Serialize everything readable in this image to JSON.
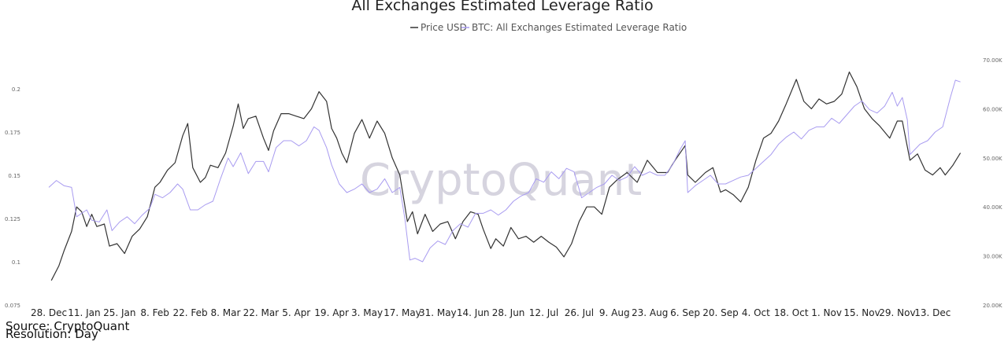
{
  "chart_data": {
    "type": "line",
    "title": "All Exchanges Estimated Leverage Ratio",
    "legend": "top-center",
    "grid": false,
    "watermark": "CryptoQuant",
    "x_ticks": [
      "28. Dec",
      "11. Jan",
      "25. Jan",
      "8. Feb",
      "22. Feb",
      "8. Mar",
      "22. Mar",
      "5. Apr",
      "19. Apr",
      "3. May",
      "17. May",
      "31. May",
      "14. Jun",
      "28. Jun",
      "12. Jul",
      "26. Jul",
      "9. Aug",
      "23. Aug",
      "6. Sep",
      "20. Sep",
      "4. Oct",
      "18. Oct",
      "1. Nov",
      "15. Nov",
      "29. Nov",
      "13. Dec"
    ],
    "x_range": [
      "2020-12-28",
      "2021-12-26"
    ],
    "y_left": {
      "ticks": [
        "0.075",
        "0.1",
        "0.125",
        "0.15",
        "0.175",
        "0.2"
      ],
      "range": [
        0.075,
        0.2
      ]
    },
    "y_right": {
      "ticks": [
        "20.00K",
        "30.00K",
        "40.00K",
        "50.00K",
        "60.00K",
        "70.00K"
      ],
      "range": [
        20000,
        70000
      ]
    },
    "series": [
      {
        "name": "Price USD",
        "axis": "right",
        "color": "#333333",
        "points": [
          [
            "2020-12-29",
            25000
          ],
          [
            "2021-01-01",
            28000
          ],
          [
            "2021-01-03",
            31000
          ],
          [
            "2021-01-06",
            35000
          ],
          [
            "2021-01-08",
            40000
          ],
          [
            "2021-01-10",
            39000
          ],
          [
            "2021-01-12",
            36000
          ],
          [
            "2021-01-14",
            38500
          ],
          [
            "2021-01-16",
            36000
          ],
          [
            "2021-01-19",
            36500
          ],
          [
            "2021-01-21",
            32000
          ],
          [
            "2021-01-24",
            32500
          ],
          [
            "2021-01-27",
            30500
          ],
          [
            "2021-01-30",
            34000
          ],
          [
            "2021-02-02",
            35500
          ],
          [
            "2021-02-05",
            38000
          ],
          [
            "2021-02-08",
            44000
          ],
          [
            "2021-02-10",
            45000
          ],
          [
            "2021-02-13",
            47500
          ],
          [
            "2021-02-16",
            49000
          ],
          [
            "2021-02-19",
            54500
          ],
          [
            "2021-02-21",
            57000
          ],
          [
            "2021-02-23",
            48000
          ],
          [
            "2021-02-26",
            45000
          ],
          [
            "2021-02-28",
            46000
          ],
          [
            "2021-03-02",
            48500
          ],
          [
            "2021-03-05",
            48000
          ],
          [
            "2021-03-08",
            51000
          ],
          [
            "2021-03-11",
            56500
          ],
          [
            "2021-03-13",
            61000
          ],
          [
            "2021-03-15",
            56000
          ],
          [
            "2021-03-17",
            58000
          ],
          [
            "2021-03-20",
            58500
          ],
          [
            "2021-03-23",
            54000
          ],
          [
            "2021-03-25",
            51500
          ],
          [
            "2021-03-27",
            55500
          ],
          [
            "2021-03-30",
            59000
          ],
          [
            "2021-04-02",
            59000
          ],
          [
            "2021-04-05",
            58500
          ],
          [
            "2021-04-08",
            58000
          ],
          [
            "2021-04-11",
            60000
          ],
          [
            "2021-04-14",
            63500
          ],
          [
            "2021-04-17",
            61500
          ],
          [
            "2021-04-19",
            56000
          ],
          [
            "2021-04-21",
            54000
          ],
          [
            "2021-04-23",
            51000
          ],
          [
            "2021-04-25",
            49000
          ],
          [
            "2021-04-28",
            55000
          ],
          [
            "2021-05-01",
            57800
          ],
          [
            "2021-05-04",
            54000
          ],
          [
            "2021-05-07",
            57500
          ],
          [
            "2021-05-10",
            55000
          ],
          [
            "2021-05-13",
            50000
          ],
          [
            "2021-05-16",
            46500
          ],
          [
            "2021-05-19",
            37000
          ],
          [
            "2021-05-21",
            39000
          ],
          [
            "2021-05-23",
            34500
          ],
          [
            "2021-05-26",
            38500
          ],
          [
            "2021-05-29",
            35000
          ],
          [
            "2021-06-01",
            36500
          ],
          [
            "2021-06-04",
            37000
          ],
          [
            "2021-06-07",
            33500
          ],
          [
            "2021-06-10",
            37000
          ],
          [
            "2021-06-13",
            39000
          ],
          [
            "2021-06-16",
            38500
          ],
          [
            "2021-06-18",
            35500
          ],
          [
            "2021-06-21",
            31500
          ],
          [
            "2021-06-23",
            33500
          ],
          [
            "2021-06-26",
            32000
          ],
          [
            "2021-06-29",
            35800
          ],
          [
            "2021-07-02",
            33500
          ],
          [
            "2021-07-05",
            34000
          ],
          [
            "2021-07-08",
            32800
          ],
          [
            "2021-07-11",
            34000
          ],
          [
            "2021-07-14",
            32800
          ],
          [
            "2021-07-17",
            31800
          ],
          [
            "2021-07-20",
            29800
          ],
          [
            "2021-07-23",
            32500
          ],
          [
            "2021-07-26",
            37000
          ],
          [
            "2021-07-29",
            40000
          ],
          [
            "2021-08-01",
            40000
          ],
          [
            "2021-08-04",
            38500
          ],
          [
            "2021-08-07",
            44000
          ],
          [
            "2021-08-10",
            45500
          ],
          [
            "2021-08-14",
            47000
          ],
          [
            "2021-08-18",
            45000
          ],
          [
            "2021-08-22",
            49500
          ],
          [
            "2021-08-26",
            47000
          ],
          [
            "2021-08-30",
            47000
          ],
          [
            "2021-09-02",
            49500
          ],
          [
            "2021-09-06",
            52500
          ],
          [
            "2021-09-07",
            46500
          ],
          [
            "2021-09-10",
            45000
          ],
          [
            "2021-09-14",
            47000
          ],
          [
            "2021-09-17",
            48000
          ],
          [
            "2021-09-20",
            43000
          ],
          [
            "2021-09-22",
            43500
          ],
          [
            "2021-09-25",
            42500
          ],
          [
            "2021-09-28",
            41000
          ],
          [
            "2021-10-01",
            44000
          ],
          [
            "2021-10-04",
            49500
          ],
          [
            "2021-10-07",
            54000
          ],
          [
            "2021-10-10",
            55000
          ],
          [
            "2021-10-13",
            57500
          ],
          [
            "2021-10-16",
            61000
          ],
          [
            "2021-10-20",
            66000
          ],
          [
            "2021-10-23",
            61500
          ],
          [
            "2021-10-26",
            60000
          ],
          [
            "2021-10-29",
            62000
          ],
          [
            "2021-11-01",
            61000
          ],
          [
            "2021-11-04",
            61500
          ],
          [
            "2021-11-07",
            63000
          ],
          [
            "2021-11-10",
            67500
          ],
          [
            "2021-11-13",
            64500
          ],
          [
            "2021-11-16",
            60000
          ],
          [
            "2021-11-19",
            58000
          ],
          [
            "2021-11-22",
            56500
          ],
          [
            "2021-11-26",
            54000
          ],
          [
            "2021-11-29",
            57500
          ],
          [
            "2021-12-01",
            57500
          ],
          [
            "2021-12-04",
            49500
          ],
          [
            "2021-12-07",
            50800
          ],
          [
            "2021-12-10",
            47500
          ],
          [
            "2021-12-13",
            46500
          ],
          [
            "2021-12-16",
            48000
          ],
          [
            "2021-12-18",
            46500
          ],
          [
            "2021-12-21",
            48500
          ],
          [
            "2021-12-24",
            51000
          ]
        ]
      },
      {
        "name": "BTC: All Exchanges Estimated Leverage Ratio",
        "axis": "left",
        "color": "#a89bf0",
        "points": [
          [
            "2020-12-28",
            0.143
          ],
          [
            "2020-12-31",
            0.147
          ],
          [
            "2021-01-03",
            0.144
          ],
          [
            "2021-01-06",
            0.143
          ],
          [
            "2021-01-08",
            0.126
          ],
          [
            "2021-01-10",
            0.128
          ],
          [
            "2021-01-12",
            0.13
          ],
          [
            "2021-01-14",
            0.124
          ],
          [
            "2021-01-17",
            0.123
          ],
          [
            "2021-01-20",
            0.13
          ],
          [
            "2021-01-22",
            0.118
          ],
          [
            "2021-01-25",
            0.123
          ],
          [
            "2021-01-28",
            0.126
          ],
          [
            "2021-01-31",
            0.122
          ],
          [
            "2021-02-03",
            0.127
          ],
          [
            "2021-02-06",
            0.131
          ],
          [
            "2021-02-08",
            0.139
          ],
          [
            "2021-02-11",
            0.137
          ],
          [
            "2021-02-14",
            0.14
          ],
          [
            "2021-02-17",
            0.145
          ],
          [
            "2021-02-19",
            0.142
          ],
          [
            "2021-02-22",
            0.13
          ],
          [
            "2021-02-25",
            0.13
          ],
          [
            "2021-02-28",
            0.133
          ],
          [
            "2021-03-03",
            0.135
          ],
          [
            "2021-03-06",
            0.148
          ],
          [
            "2021-03-09",
            0.16
          ],
          [
            "2021-03-11",
            0.155
          ],
          [
            "2021-03-14",
            0.163
          ],
          [
            "2021-03-17",
            0.151
          ],
          [
            "2021-03-20",
            0.158
          ],
          [
            "2021-03-23",
            0.158
          ],
          [
            "2021-03-25",
            0.152
          ],
          [
            "2021-03-28",
            0.166
          ],
          [
            "2021-03-31",
            0.17
          ],
          [
            "2021-04-03",
            0.17
          ],
          [
            "2021-04-06",
            0.167
          ],
          [
            "2021-04-09",
            0.17
          ],
          [
            "2021-04-12",
            0.178
          ],
          [
            "2021-04-14",
            0.176
          ],
          [
            "2021-04-17",
            0.166
          ],
          [
            "2021-04-19",
            0.156
          ],
          [
            "2021-04-22",
            0.145
          ],
          [
            "2021-04-25",
            0.14
          ],
          [
            "2021-04-28",
            0.142
          ],
          [
            "2021-05-01",
            0.145
          ],
          [
            "2021-05-04",
            0.14
          ],
          [
            "2021-05-07",
            0.142
          ],
          [
            "2021-05-10",
            0.148
          ],
          [
            "2021-05-13",
            0.14
          ],
          [
            "2021-05-16",
            0.143
          ],
          [
            "2021-05-18",
            0.125
          ],
          [
            "2021-05-20",
            0.101
          ],
          [
            "2021-05-22",
            0.102
          ],
          [
            "2021-05-25",
            0.1
          ],
          [
            "2021-05-28",
            0.108
          ],
          [
            "2021-05-31",
            0.112
          ],
          [
            "2021-06-03",
            0.11
          ],
          [
            "2021-06-06",
            0.118
          ],
          [
            "2021-06-09",
            0.122
          ],
          [
            "2021-06-12",
            0.12
          ],
          [
            "2021-06-15",
            0.128
          ],
          [
            "2021-06-18",
            0.128
          ],
          [
            "2021-06-21",
            0.13
          ],
          [
            "2021-06-24",
            0.127
          ],
          [
            "2021-06-27",
            0.13
          ],
          [
            "2021-06-30",
            0.135
          ],
          [
            "2021-07-03",
            0.138
          ],
          [
            "2021-07-06",
            0.14
          ],
          [
            "2021-07-09",
            0.148
          ],
          [
            "2021-07-12",
            0.146
          ],
          [
            "2021-07-15",
            0.152
          ],
          [
            "2021-07-18",
            0.148
          ],
          [
            "2021-07-21",
            0.154
          ],
          [
            "2021-07-24",
            0.152
          ],
          [
            "2021-07-27",
            0.137
          ],
          [
            "2021-07-30",
            0.14
          ],
          [
            "2021-08-02",
            0.143
          ],
          [
            "2021-08-05",
            0.145
          ],
          [
            "2021-08-08",
            0.15
          ],
          [
            "2021-08-11",
            0.147
          ],
          [
            "2021-08-14",
            0.149
          ],
          [
            "2021-08-17",
            0.155
          ],
          [
            "2021-08-20",
            0.15
          ],
          [
            "2021-08-23",
            0.152
          ],
          [
            "2021-08-26",
            0.15
          ],
          [
            "2021-08-29",
            0.15
          ],
          [
            "2021-09-01",
            0.156
          ],
          [
            "2021-09-04",
            0.165
          ],
          [
            "2021-09-06",
            0.17
          ],
          [
            "2021-09-07",
            0.14
          ],
          [
            "2021-09-10",
            0.144
          ],
          [
            "2021-09-13",
            0.147
          ],
          [
            "2021-09-16",
            0.15
          ],
          [
            "2021-09-19",
            0.145
          ],
          [
            "2021-09-22",
            0.145
          ],
          [
            "2021-09-25",
            0.147
          ],
          [
            "2021-09-28",
            0.149
          ],
          [
            "2021-10-01",
            0.15
          ],
          [
            "2021-10-04",
            0.154
          ],
          [
            "2021-10-07",
            0.158
          ],
          [
            "2021-10-10",
            0.162
          ],
          [
            "2021-10-13",
            0.168
          ],
          [
            "2021-10-16",
            0.172
          ],
          [
            "2021-10-19",
            0.175
          ],
          [
            "2021-10-22",
            0.171
          ],
          [
            "2021-10-25",
            0.176
          ],
          [
            "2021-10-28",
            0.178
          ],
          [
            "2021-10-31",
            0.178
          ],
          [
            "2021-11-03",
            0.183
          ],
          [
            "2021-11-06",
            0.18
          ],
          [
            "2021-11-09",
            0.185
          ],
          [
            "2021-11-12",
            0.19
          ],
          [
            "2021-11-15",
            0.193
          ],
          [
            "2021-11-18",
            0.188
          ],
          [
            "2021-11-21",
            0.186
          ],
          [
            "2021-11-24",
            0.19
          ],
          [
            "2021-11-27",
            0.198
          ],
          [
            "2021-11-29",
            0.19
          ],
          [
            "2021-12-01",
            0.195
          ],
          [
            "2021-12-03",
            0.182
          ],
          [
            "2021-12-04",
            0.162
          ],
          [
            "2021-12-06",
            0.165
          ],
          [
            "2021-12-08",
            0.168
          ],
          [
            "2021-12-11",
            0.17
          ],
          [
            "2021-12-14",
            0.175
          ],
          [
            "2021-12-17",
            0.178
          ],
          [
            "2021-12-20",
            0.195
          ],
          [
            "2021-12-22",
            0.205
          ],
          [
            "2021-12-24",
            0.204
          ]
        ]
      }
    ]
  },
  "footer": {
    "source": "Source: CryptoQuant",
    "resolution": "Resolution: Day"
  }
}
